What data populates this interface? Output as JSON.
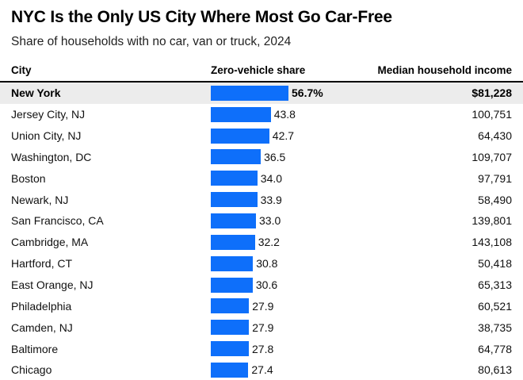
{
  "header": {
    "title": "NYC Is the Only US City Where Most Go Car-Free",
    "subtitle": "Share of households with no car, van or truck, 2024"
  },
  "table": {
    "columns": {
      "city": "City",
      "share": "Zero-vehicle share",
      "income": "Median household income"
    },
    "rows": [
      {
        "city": "New York",
        "share": 56.7,
        "share_label": "56.7%",
        "income_label": "$81,228",
        "highlight": true
      },
      {
        "city": "Jersey City, NJ",
        "share": 43.8,
        "share_label": "43.8",
        "income_label": "100,751",
        "highlight": false
      },
      {
        "city": "Union City, NJ",
        "share": 42.7,
        "share_label": "42.7",
        "income_label": "64,430",
        "highlight": false
      },
      {
        "city": "Washington, DC",
        "share": 36.5,
        "share_label": "36.5",
        "income_label": "109,707",
        "highlight": false
      },
      {
        "city": "Boston",
        "share": 34.0,
        "share_label": "34.0",
        "income_label": "97,791",
        "highlight": false
      },
      {
        "city": "Newark, NJ",
        "share": 33.9,
        "share_label": "33.9",
        "income_label": "58,490",
        "highlight": false
      },
      {
        "city": "San Francisco, CA",
        "share": 33.0,
        "share_label": "33.0",
        "income_label": "139,801",
        "highlight": false
      },
      {
        "city": "Cambridge, MA",
        "share": 32.2,
        "share_label": "32.2",
        "income_label": "143,108",
        "highlight": false
      },
      {
        "city": "Hartford, CT",
        "share": 30.8,
        "share_label": "30.8",
        "income_label": "50,418",
        "highlight": false
      },
      {
        "city": "East Orange, NJ",
        "share": 30.6,
        "share_label": "30.6",
        "income_label": "65,313",
        "highlight": false
      },
      {
        "city": "Philadelphia",
        "share": 27.9,
        "share_label": "27.9",
        "income_label": "60,521",
        "highlight": false
      },
      {
        "city": "Camden, NJ",
        "share": 27.9,
        "share_label": "27.9",
        "income_label": "38,735",
        "highlight": false
      },
      {
        "city": "Baltimore",
        "share": 27.8,
        "share_label": "27.8",
        "income_label": "64,778",
        "highlight": false
      },
      {
        "city": "Chicago",
        "share": 27.4,
        "share_label": "27.4",
        "income_label": "80,613",
        "highlight": false
      }
    ]
  },
  "chart_data": {
    "type": "bar",
    "orientation": "horizontal",
    "title": "NYC Is the Only US City Where Most Go Car-Free",
    "subtitle": "Share of households with no car, van or truck, 2024",
    "categories": [
      "New York",
      "Jersey City, NJ",
      "Union City, NJ",
      "Washington, DC",
      "Boston",
      "Newark, NJ",
      "San Francisco, CA",
      "Cambridge, MA",
      "Hartford, CT",
      "East Orange, NJ",
      "Philadelphia",
      "Camden, NJ",
      "Baltimore",
      "Chicago"
    ],
    "series": [
      {
        "name": "Zero-vehicle share",
        "unit": "%",
        "values": [
          56.7,
          43.8,
          42.7,
          36.5,
          34.0,
          33.9,
          33.0,
          32.2,
          30.8,
          30.6,
          27.9,
          27.9,
          27.8,
          27.4
        ]
      },
      {
        "name": "Median household income",
        "unit": "USD",
        "values": [
          81228,
          100751,
          64430,
          109707,
          97791,
          58490,
          139801,
          143108,
          50418,
          65313,
          60521,
          38735,
          64778,
          80613
        ]
      }
    ],
    "xlim": [
      0,
      56.7
    ],
    "grid": false,
    "legend": false,
    "highlighted_category": "New York"
  },
  "colors": {
    "bar_blue": "#0e6ffa",
    "highlight_row_bg": "#ececec",
    "rule_black": "#000000"
  }
}
